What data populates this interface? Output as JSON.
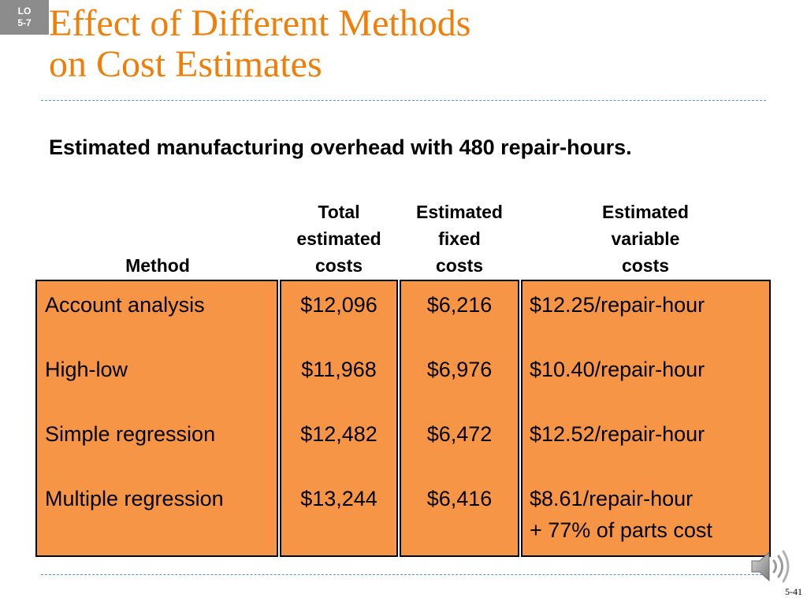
{
  "badge": {
    "line1": "LO",
    "line2": "5-7"
  },
  "title": {
    "line1": "Effect of Different Methods",
    "line2": "on Cost Estimates"
  },
  "subtitle": "Estimated manufacturing overhead with 480 repair-hours.",
  "table": {
    "headers": {
      "method": [
        "Method"
      ],
      "total": [
        "Total",
        "estimated",
        "costs"
      ],
      "fixed": [
        "Estimated",
        "fixed",
        "costs"
      ],
      "variable": [
        "Estimated",
        "variable",
        "costs"
      ]
    },
    "rows": [
      {
        "method": "Account analysis",
        "total": "$12,096",
        "fixed": "$6,216",
        "variable": [
          "$12.25/repair-hour"
        ]
      },
      {
        "method": "High-low",
        "total": "$11,968",
        "fixed": "$6,976",
        "variable": [
          "$10.40/repair-hour"
        ]
      },
      {
        "method": "Simple regression",
        "total": "$12,482",
        "fixed": "$6,472",
        "variable": [
          "$12.52/repair-hour"
        ]
      },
      {
        "method": "Multiple regression",
        "total": "$13,244",
        "fixed": "$6,416",
        "variable": [
          "$8.61/repair-hour",
          "+ 77% of parts cost"
        ]
      }
    ]
  },
  "colors": {
    "title": "#f07f09",
    "box_fill": "#f79547",
    "rule": "#5f94c8",
    "badge": "#8c8c8c"
  },
  "icons": {
    "audio": "speaker-icon"
  },
  "page_number": "5-41"
}
